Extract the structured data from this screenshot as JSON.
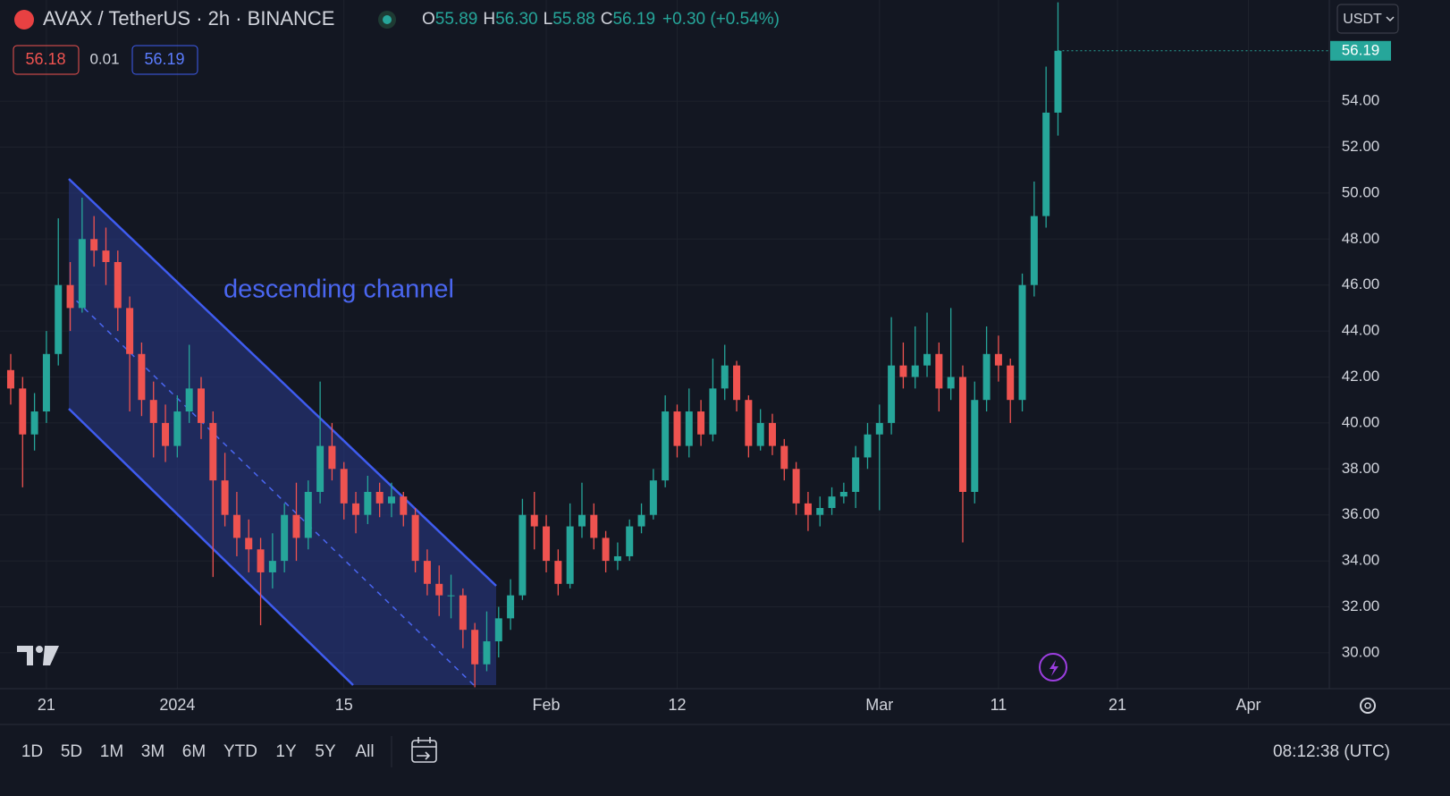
{
  "header": {
    "symbol": "AVAX / TetherUS · 2h · BINANCE",
    "ohlc": [
      {
        "key": "O",
        "value": "55.89"
      },
      {
        "key": "H",
        "value": "56.30"
      },
      {
        "key": "L",
        "value": "55.88"
      },
      {
        "key": "C",
        "value": "56.19"
      }
    ],
    "change": "+0.30 (+0.54%)",
    "bid": "56.18",
    "spread": "0.01",
    "ask": "56.19",
    "currency": "USDT",
    "last_price_label": "56.19"
  },
  "annotation": "descending channel",
  "toolbar": {
    "ranges": [
      "1D",
      "5D",
      "1M",
      "3M",
      "6M",
      "YTD",
      "1Y",
      "5Y",
      "All"
    ],
    "clock": "08:12:38 (UTC)"
  },
  "chart_data": {
    "type": "candlestick",
    "up_color": "#26a69a",
    "down_color": "#ef5350",
    "grid": true,
    "x": [
      -3,
      -2,
      -1,
      0,
      1,
      2,
      3,
      4,
      5,
      6,
      7,
      8,
      9,
      10,
      11,
      12,
      13,
      14,
      15,
      16,
      17,
      18,
      19,
      20,
      21,
      22,
      23,
      24,
      25,
      26,
      27,
      28,
      29,
      30,
      31,
      32,
      33,
      34,
      35,
      36,
      37,
      38,
      39,
      40,
      41,
      42,
      43,
      44,
      45,
      46,
      47,
      48,
      49,
      50,
      51,
      52,
      53,
      54,
      55,
      56,
      57,
      58,
      59,
      60,
      61,
      62,
      63,
      64,
      65,
      66,
      67,
      68,
      69,
      70,
      71,
      72,
      73,
      74,
      75,
      76,
      77,
      78,
      79,
      80,
      81,
      82,
      83,
      84,
      85
    ],
    "open": [
      42.3,
      41.5,
      39.5,
      40.5,
      43,
      46,
      45,
      48,
      47.5,
      47,
      45,
      43,
      41,
      40,
      39,
      40.5,
      41.5,
      40,
      37.5,
      36,
      35,
      34.5,
      33.5,
      34,
      36,
      35,
      37,
      39,
      38,
      36.5,
      36,
      37,
      36.5,
      36.8,
      36,
      34,
      33,
      32.5,
      32.5,
      31,
      29.5,
      30.5,
      31.5,
      32.5,
      36,
      35.5,
      34,
      33,
      35.5,
      36,
      35,
      34,
      34.2,
      35.5,
      36,
      37.5,
      40.5,
      39,
      40.5,
      39.5,
      41.5,
      42.5,
      41,
      39,
      40,
      39,
      38,
      36.5,
      36,
      36.3,
      36.8,
      37,
      38.5,
      39.5,
      40,
      42.5,
      42,
      42.5,
      43,
      41.5,
      42,
      37,
      41,
      43,
      42.5,
      41,
      46,
      49,
      53.5
    ],
    "high": [
      43,
      42,
      41.3,
      44,
      48.9,
      47,
      49.8,
      49,
      48.5,
      47.5,
      45.5,
      43.5,
      41.8,
      40.8,
      41.2,
      43.4,
      42,
      40.5,
      38.7,
      37,
      35.8,
      35,
      35.2,
      36.5,
      37.4,
      37.5,
      41.8,
      40,
      38.3,
      37,
      37.7,
      37.4,
      37.4,
      37,
      36.3,
      34.5,
      33.8,
      33.4,
      32.8,
      31.3,
      31.8,
      32,
      33.2,
      36.7,
      37,
      36,
      34.5,
      36.5,
      37.4,
      36.5,
      35.3,
      34.8,
      35.8,
      36.5,
      38,
      41.2,
      40.8,
      41.5,
      41,
      42.8,
      43.4,
      42.7,
      41.2,
      40.6,
      40.4,
      39.3,
      38.3,
      37,
      36.8,
      37.2,
      37.4,
      39,
      40,
      40.8,
      44.6,
      43.5,
      44.2,
      44.8,
      43.5,
      45,
      42.5,
      41.8,
      44.2,
      43.8,
      42.8,
      46.5,
      50.5,
      55.5,
      58.3
    ],
    "low": [
      40.8,
      37.2,
      38.8,
      40,
      42.5,
      44,
      44.8,
      46.8,
      46,
      44,
      40.5,
      40.3,
      38.5,
      38.3,
      38.5,
      40,
      39.3,
      33.3,
      35.5,
      34.2,
      33.5,
      31.2,
      32.8,
      33.5,
      34,
      34.5,
      36.5,
      37.5,
      35.8,
      35.2,
      35.6,
      35.9,
      35.9,
      35.5,
      33.5,
      32.5,
      31.6,
      31.5,
      30.2,
      28.5,
      29.2,
      29.8,
      31,
      32.3,
      34.5,
      33.5,
      32.5,
      32.8,
      35,
      34.5,
      33.5,
      33.6,
      34,
      35.2,
      35.8,
      37.2,
      38.5,
      38.5,
      39,
      39.2,
      41,
      40.5,
      38.5,
      38.8,
      38.6,
      37.5,
      36,
      35.3,
      35.5,
      36,
      36.5,
      36.3,
      38,
      36.2,
      39.5,
      41.5,
      41.5,
      42,
      40.5,
      41,
      34.8,
      36.5,
      40.5,
      41.8,
      40,
      40.5,
      45.5,
      48.5,
      52.5
    ],
    "close": [
      41.5,
      39.5,
      40.5,
      43,
      46,
      45,
      48,
      47.5,
      47,
      45,
      43,
      41,
      40,
      39,
      40.5,
      41.5,
      40,
      37.5,
      36,
      35,
      34.5,
      33.5,
      34,
      36,
      35,
      37,
      39,
      38,
      36.5,
      36,
      37,
      36.5,
      36.8,
      36,
      34,
      33,
      32.5,
      32.5,
      31,
      29.5,
      30.5,
      31.5,
      32.5,
      36,
      35.5,
      34,
      33,
      35.5,
      36,
      35,
      34,
      34.2,
      35.5,
      36,
      37.5,
      40.5,
      39,
      40.5,
      39.5,
      41.5,
      42.5,
      41,
      39,
      40,
      39,
      38,
      36.5,
      36,
      36.3,
      36.8,
      37,
      38.5,
      39.5,
      40,
      42.5,
      42,
      42.5,
      43,
      41.5,
      42,
      37,
      41,
      43,
      42.5,
      41,
      46,
      49,
      53.5,
      56.19
    ],
    "xlim": [
      -3.9,
      107.8
    ],
    "xticks": [
      {
        "value": 0,
        "label": "21"
      },
      {
        "value": 11,
        "label": "2024"
      },
      {
        "value": 25,
        "label": "15"
      },
      {
        "value": 42,
        "label": "Feb"
      },
      {
        "value": 53,
        "label": "12"
      },
      {
        "value": 70,
        "label": "Mar"
      },
      {
        "value": 80,
        "label": "11"
      },
      {
        "value": 90,
        "label": "21"
      },
      {
        "value": 101,
        "label": "Apr"
      }
    ],
    "ylim": [
      28.44,
      58.4
    ],
    "yticks": [
      {
        "value": 30,
        "label": "30.00"
      },
      {
        "value": 32,
        "label": "32.00"
      },
      {
        "value": 34,
        "label": "34.00"
      },
      {
        "value": 36,
        "label": "36.00"
      },
      {
        "value": 38,
        "label": "38.00"
      },
      {
        "value": 40,
        "label": "40.00"
      },
      {
        "value": 42,
        "label": "42.00"
      },
      {
        "value": 44,
        "label": "44.00"
      },
      {
        "value": 46,
        "label": "46.00"
      },
      {
        "value": 48,
        "label": "48.00"
      },
      {
        "value": 50,
        "label": "50.00"
      },
      {
        "value": 52,
        "label": "52.00"
      },
      {
        "value": 54,
        "label": "54.00"
      }
    ]
  }
}
